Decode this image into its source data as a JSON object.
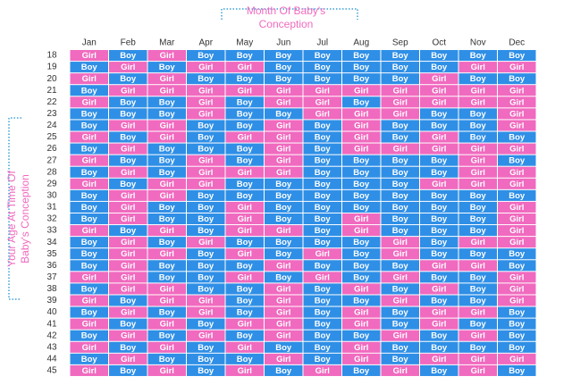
{
  "header": {
    "title": [
      "Month Of Baby's",
      "Conception"
    ]
  },
  "side_label": [
    "Your Age At Time Of",
    "Baby's Conception"
  ],
  "colors": {
    "Boy": "#2f8fe6",
    "Girl": "#f06abf"
  },
  "table": {
    "columns": [
      "Jan",
      "Feb",
      "Mar",
      "Apr",
      "May",
      "Jun",
      "Jul",
      "Aug",
      "Sep",
      "Oct",
      "Nov",
      "Dec"
    ],
    "rows": [
      {
        "age": 18,
        "cells": [
          "Girl",
          "Boy",
          "Girl",
          "Boy",
          "Boy",
          "Boy",
          "Boy",
          "Boy",
          "Boy",
          "Boy",
          "Boy",
          "Boy"
        ]
      },
      {
        "age": 19,
        "cells": [
          "Boy",
          "Girl",
          "Boy",
          "Girl",
          "Girl",
          "Boy",
          "Boy",
          "Boy",
          "Boy",
          "Boy",
          "Girl",
          "Girl"
        ]
      },
      {
        "age": 20,
        "cells": [
          "Girl",
          "Boy",
          "Girl",
          "Boy",
          "Boy",
          "Boy",
          "Boy",
          "Boy",
          "Boy",
          "Girl",
          "Boy",
          "Boy"
        ]
      },
      {
        "age": 21,
        "cells": [
          "Boy",
          "Girl",
          "Girl",
          "Girl",
          "Girl",
          "Girl",
          "Girl",
          "Girl",
          "Girl",
          "Girl",
          "Girl",
          "Girl"
        ]
      },
      {
        "age": 22,
        "cells": [
          "Girl",
          "Boy",
          "Boy",
          "Girl",
          "Boy",
          "Girl",
          "Girl",
          "Boy",
          "Girl",
          "Girl",
          "Girl",
          "Girl"
        ]
      },
      {
        "age": 23,
        "cells": [
          "Boy",
          "Boy",
          "Boy",
          "Girl",
          "Boy",
          "Boy",
          "Girl",
          "Girl",
          "Girl",
          "Boy",
          "Boy",
          "Girl"
        ]
      },
      {
        "age": 24,
        "cells": [
          "Boy",
          "Girl",
          "Girl",
          "Boy",
          "Boy",
          "Girl",
          "Boy",
          "Girl",
          "Boy",
          "Boy",
          "Boy",
          "Girl"
        ]
      },
      {
        "age": 25,
        "cells": [
          "Girl",
          "Boy",
          "Girl",
          "Boy",
          "Girl",
          "Girl",
          "Boy",
          "Girl",
          "Boy",
          "Girl",
          "Boy",
          "Boy"
        ]
      },
      {
        "age": 26,
        "cells": [
          "Boy",
          "Girl",
          "Boy",
          "Boy",
          "Boy",
          "Girl",
          "Boy",
          "Girl",
          "Girl",
          "Girl",
          "Girl",
          "Girl"
        ]
      },
      {
        "age": 27,
        "cells": [
          "Girl",
          "Boy",
          "Boy",
          "Girl",
          "Boy",
          "Girl",
          "Boy",
          "Boy",
          "Boy",
          "Boy",
          "Girl",
          "Boy"
        ]
      },
      {
        "age": 28,
        "cells": [
          "Boy",
          "Girl",
          "Boy",
          "Girl",
          "Girl",
          "Girl",
          "Boy",
          "Boy",
          "Boy",
          "Boy",
          "Girl",
          "Girl"
        ]
      },
      {
        "age": 29,
        "cells": [
          "Girl",
          "Boy",
          "Girl",
          "Girl",
          "Boy",
          "Boy",
          "Boy",
          "Boy",
          "Boy",
          "Girl",
          "Girl",
          "Girl"
        ]
      },
      {
        "age": 30,
        "cells": [
          "Boy",
          "Girl",
          "Girl",
          "Boy",
          "Boy",
          "Boy",
          "Boy",
          "Boy",
          "Boy",
          "Boy",
          "Boy",
          "Boy"
        ]
      },
      {
        "age": 31,
        "cells": [
          "Boy",
          "Girl",
          "Boy",
          "Boy",
          "Girl",
          "Boy",
          "Boy",
          "Boy",
          "Boy",
          "Boy",
          "Boy",
          "Girl"
        ]
      },
      {
        "age": 32,
        "cells": [
          "Boy",
          "Girl",
          "Boy",
          "Boy",
          "Girl",
          "Boy",
          "Boy",
          "Girl",
          "Boy",
          "Boy",
          "Boy",
          "Girl"
        ]
      },
      {
        "age": 33,
        "cells": [
          "Girl",
          "Boy",
          "Girl",
          "Boy",
          "Girl",
          "Girl",
          "Boy",
          "Girl",
          "Boy",
          "Boy",
          "Boy",
          "Girl"
        ]
      },
      {
        "age": 34,
        "cells": [
          "Boy",
          "Girl",
          "Boy",
          "Girl",
          "Boy",
          "Boy",
          "Boy",
          "Boy",
          "Girl",
          "Boy",
          "Girl",
          "Girl"
        ]
      },
      {
        "age": 35,
        "cells": [
          "Boy",
          "Girl",
          "Girl",
          "Boy",
          "Girl",
          "Boy",
          "Girl",
          "Boy",
          "Girl",
          "Boy",
          "Boy",
          "Boy"
        ]
      },
      {
        "age": 36,
        "cells": [
          "Boy",
          "Girl",
          "Boy",
          "Boy",
          "Boy",
          "Girl",
          "Boy",
          "Boy",
          "Boy",
          "Girl",
          "Girl",
          "Boy"
        ]
      },
      {
        "age": 37,
        "cells": [
          "Girl",
          "Girl",
          "Boy",
          "Boy",
          "Girl",
          "Boy",
          "Girl",
          "Boy",
          "Girl",
          "Boy",
          "Boy",
          "Girl"
        ]
      },
      {
        "age": 38,
        "cells": [
          "Boy",
          "Girl",
          "Girl",
          "Boy",
          "Boy",
          "Girl",
          "Boy",
          "Girl",
          "Boy",
          "Girl",
          "Boy",
          "Girl"
        ]
      },
      {
        "age": 39,
        "cells": [
          "Girl",
          "Boy",
          "Girl",
          "Girl",
          "Boy",
          "Girl",
          "Boy",
          "Boy",
          "Girl",
          "Boy",
          "Boy",
          "Girl"
        ]
      },
      {
        "age": 40,
        "cells": [
          "Boy",
          "Girl",
          "Boy",
          "Girl",
          "Boy",
          "Girl",
          "Boy",
          "Girl",
          "Boy",
          "Girl",
          "Girl",
          "Boy"
        ]
      },
      {
        "age": 41,
        "cells": [
          "Girl",
          "Boy",
          "Girl",
          "Boy",
          "Girl",
          "Girl",
          "Boy",
          "Girl",
          "Boy",
          "Girl",
          "Boy",
          "Boy"
        ]
      },
      {
        "age": 42,
        "cells": [
          "Boy",
          "Girl",
          "Boy",
          "Girl",
          "Boy",
          "Girl",
          "Boy",
          "Boy",
          "Girl",
          "Boy",
          "Girl",
          "Boy"
        ]
      },
      {
        "age": 43,
        "cells": [
          "Girl",
          "Boy",
          "Girl",
          "Boy",
          "Girl",
          "Boy",
          "Boy",
          "Girl",
          "Boy",
          "Boy",
          "Boy",
          "Boy"
        ]
      },
      {
        "age": 44,
        "cells": [
          "Boy",
          "Girl",
          "Boy",
          "Boy",
          "Boy",
          "Girl",
          "Boy",
          "Girl",
          "Boy",
          "Girl",
          "Girl",
          "Girl"
        ]
      },
      {
        "age": 45,
        "cells": [
          "Girl",
          "Boy",
          "Girl",
          "Boy",
          "Girl",
          "Boy",
          "Girl",
          "Boy",
          "Girl",
          "Boy",
          "Girl",
          "Boy"
        ]
      }
    ]
  }
}
